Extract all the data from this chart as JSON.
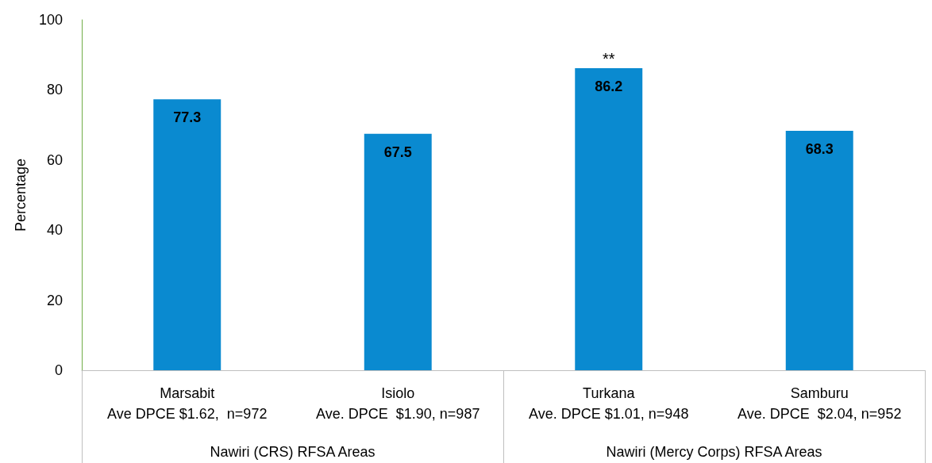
{
  "chart_data": {
    "type": "bar",
    "ylabel": "Percentage",
    "categories": [
      "Marsabit\nAve DPCE $1.62,  n=972",
      "Isiolo\nAve. DPCE  $1.90, n=987",
      "Turkana\nAve. DPCE $1.01, n=948",
      "Samburu\nAve. DPCE  $2.04, n=952"
    ],
    "values": [
      77.3,
      67.5,
      86.2,
      68.3
    ],
    "color": "#0a8ad0",
    "data_labels": true,
    "ylim": [
      0,
      100
    ],
    "yticks": [
      0,
      20,
      40,
      60,
      80,
      100
    ],
    "grid": false,
    "annotations": [
      {
        "text": "**",
        "x": "Turkana\nAve. DPCE $1.01, n=948",
        "y": 86.2
      },
      "Nawiri (CRS) RFSA Areas",
      "Nawiri (Mercy Corps) RFSA Areas"
    ]
  }
}
